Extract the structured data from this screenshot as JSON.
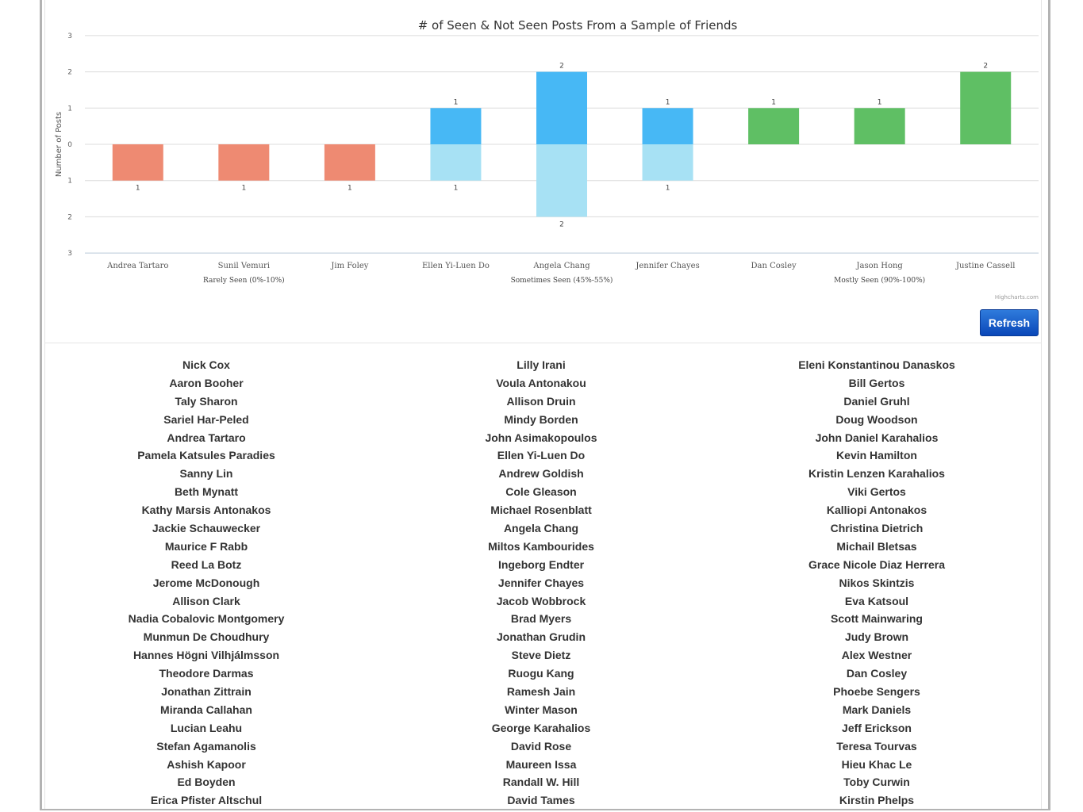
{
  "chart_data": {
    "type": "bar",
    "title": "# of Seen & Not Seen Posts From a Sample of Friends",
    "ylabel": "Number of Posts",
    "ylim": [
      -3,
      3
    ],
    "y_tick_labels": [
      "3",
      "2",
      "1",
      "0",
      "1",
      "2",
      "3"
    ],
    "categories": [
      "Andrea Tartaro",
      "Sunil Vemuri",
      "Jim Foley",
      "Ellen Yi-Luen Do",
      "Angela Chang",
      "Jennifer Chayes",
      "Dan Cosley",
      "Jason Hong",
      "Justine Cassell"
    ],
    "group_labels": [
      {
        "label": "Rarely Seen (0%-10%)",
        "categories": [
          "Andrea Tartaro",
          "Sunil Vemuri",
          "Jim Foley"
        ]
      },
      {
        "label": "Sometimes Seen (45%-55%)",
        "categories": [
          "Ellen Yi-Luen Do",
          "Angela Chang",
          "Jennifer Chayes"
        ]
      },
      {
        "label": "Mostly Seen (90%-100%)",
        "categories": [
          "Dan Cosley",
          "Jason Hong",
          "Justine Cassell"
        ]
      }
    ],
    "series": [
      {
        "values": [
          0,
          0,
          0,
          0,
          0,
          0,
          1,
          1,
          2
        ],
        "color": "#5fbf64"
      },
      {
        "values": [
          0,
          0,
          0,
          1,
          2,
          1,
          0,
          0,
          0
        ],
        "color": "#47b8f5"
      },
      {
        "values": [
          0,
          0,
          0,
          -1,
          -2,
          -1,
          0,
          0,
          0
        ],
        "color": "#a7e1f4"
      },
      {
        "values": [
          -1,
          -1,
          -1,
          0,
          0,
          0,
          0,
          0,
          0
        ],
        "color": "#ee8a72"
      }
    ],
    "data_labels": [
      {
        "category": "Andrea Tartaro",
        "value": -1,
        "text": "1"
      },
      {
        "category": "Sunil Vemuri",
        "value": -1,
        "text": "1"
      },
      {
        "category": "Jim Foley",
        "value": -1,
        "text": "1"
      },
      {
        "category": "Ellen Yi-Luen Do",
        "value": 1,
        "text": "1"
      },
      {
        "category": "Ellen Yi-Luen Do",
        "value": -1,
        "text": "1"
      },
      {
        "category": "Angela Chang",
        "value": 2,
        "text": "2"
      },
      {
        "category": "Angela Chang",
        "value": -2,
        "text": "2"
      },
      {
        "category": "Jennifer Chayes",
        "value": 1,
        "text": "1"
      },
      {
        "category": "Jennifer Chayes",
        "value": -1,
        "text": "1"
      },
      {
        "category": "Dan Cosley",
        "value": 1,
        "text": "1"
      },
      {
        "category": "Jason Hong",
        "value": 1,
        "text": "1"
      },
      {
        "category": "Justine Cassell",
        "value": 2,
        "text": "2"
      }
    ],
    "grid": true,
    "credit": "Highcharts.com"
  },
  "refresh_label": "Refresh",
  "friends": {
    "column_1": [
      "Nick Cox",
      "Aaron Booher",
      "Taly Sharon",
      "Sariel Har-Peled",
      "Andrea Tartaro",
      "Pamela Katsules Paradies",
      "Sanny Lin",
      "Beth Mynatt",
      "Kathy Marsis Antonakos",
      "Jackie Schauwecker",
      "Maurice F Rabb",
      "Reed La Botz",
      "Jerome McDonough",
      "Allison Clark",
      "Nadia Cobalovic Montgomery",
      "Munmun De Choudhury",
      "Hannes Högni Vilhjálmsson",
      "Theodore Darmas",
      "Jonathan Zittrain",
      "Miranda Callahan",
      "Lucian Leahu",
      "Stefan Agamanolis",
      "Ashish Kapoor",
      "Ed Boyden",
      "Erica Pfister Altschul"
    ],
    "column_2": [
      "Lilly Irani",
      "Voula Antonakou",
      "Allison Druin",
      "Mindy Borden",
      "John Asimakopoulos",
      "Ellen Yi-Luen Do",
      "Andrew Goldish",
      "Cole Gleason",
      "Michael Rosenblatt",
      "Angela Chang",
      "Miltos Kambourides",
      "Ingeborg Endter",
      "Jennifer Chayes",
      "Jacob Wobbrock",
      "Brad Myers",
      "Jonathan Grudin",
      "Steve Dietz",
      "Ruogu Kang",
      "Ramesh Jain",
      "Winter Mason",
      "George Karahalios",
      "David Rose",
      "Maureen Issa",
      "Randall W. Hill",
      "David Tames"
    ],
    "column_3": [
      "Eleni Konstantinou Danaskos",
      "Bill Gertos",
      "Daniel Gruhl",
      "Doug Woodson",
      "John Daniel Karahalios",
      "Kevin Hamilton",
      "Kristin Lenzen Karahalios",
      "Viki Gertos",
      "Kalliopi Antonakos",
      "Christina Dietrich",
      "Michail Bletsas",
      "Grace Nicole Diaz Herrera",
      "Nikos Skintzis",
      "Eva Katsoul",
      "Scott Mainwaring",
      "Judy Brown",
      "Alex Westner",
      "Dan Cosley",
      "Phoebe Sengers",
      "Mark Daniels",
      "Jeff Erickson",
      "Teresa Tourvas",
      "Hieu Khac Le",
      "Toby Curwin",
      "Kirstin Phelps"
    ]
  }
}
